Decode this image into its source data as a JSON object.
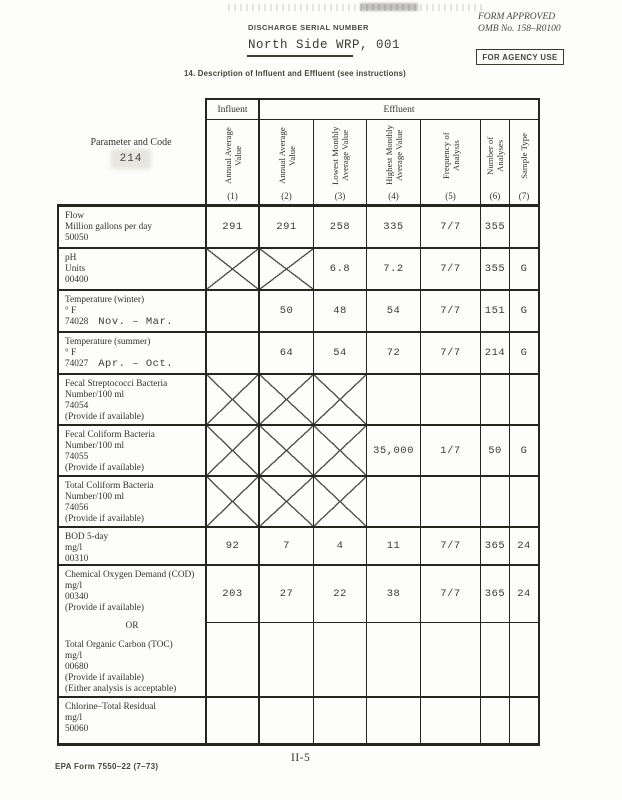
{
  "page": {
    "discharge_label": "DISCHARGE SERIAL NUMBER",
    "discharge_value": "North Side WRP, 001",
    "form_approved_line1": "FORM APPROVED",
    "form_approved_line2": "OMB No. 158–R0100",
    "agency_use_label": "FOR AGENCY USE",
    "section_title": "14. Description of Influent and Effluent (see instructions)",
    "footer_left": "EPA Form 7550–22 (7–73)",
    "footer_center": "II-5"
  },
  "colors": {
    "paper": "#fdfdfb",
    "ink": "#33322c",
    "table_line": "#26251f"
  },
  "table": {
    "param_header": "Parameter and Code",
    "param_stamp": "214",
    "group_influent": "Influent",
    "group_effluent": "Effluent",
    "columns": [
      {
        "label": "Annual Average Value",
        "num": "(1)"
      },
      {
        "label": "Annual Average Value",
        "num": "(2)"
      },
      {
        "label": "Lowest Monthly Average Value",
        "num": "(3)"
      },
      {
        "label": "Highest Monthly Average Value",
        "num": "(4)"
      },
      {
        "label": "Frequency of Analysis",
        "num": "(5)"
      },
      {
        "label": "Number of Analyses",
        "num": "(6)"
      },
      {
        "label": "Sample Type",
        "num": "(7)"
      }
    ],
    "rows": [
      {
        "name": "Flow",
        "unit": "Million gallons per day",
        "code": "50050",
        "values": [
          "291",
          "291",
          "258",
          "335",
          "7/7",
          "355",
          ""
        ]
      },
      {
        "name": "pH",
        "unit": "Units",
        "code": "00400",
        "crossed": [
          0,
          1
        ],
        "values": [
          "",
          "",
          "6.8",
          "7.2",
          "7/7",
          "355",
          "G"
        ]
      },
      {
        "name": "Temperature (winter)",
        "unit": "° F",
        "code": "74028",
        "typed": "Nov. – Mar.",
        "values": [
          "",
          "50",
          "48",
          "54",
          "7/7",
          "151",
          "G"
        ]
      },
      {
        "name": "Temperature (summer)",
        "unit": "° F",
        "code": "74027",
        "typed": "Apr. – Oct.",
        "values": [
          "",
          "64",
          "54",
          "72",
          "7/7",
          "214",
          "G"
        ]
      },
      {
        "name": "Fecal Streptococci Bacteria",
        "unit": "Number/100 ml",
        "code": "74054",
        "note": "(Provide if available)",
        "crossed": [
          0,
          1,
          2
        ],
        "values": [
          "",
          "",
          "",
          "",
          "",
          "",
          ""
        ]
      },
      {
        "name": "Fecal Coliform Bacteria",
        "unit": "Number/100 ml",
        "code": "74055",
        "note": "(Provide if available)",
        "crossed": [
          0,
          1,
          2
        ],
        "values": [
          "",
          "",
          "",
          "35,000",
          "1/7",
          "50",
          "G"
        ]
      },
      {
        "name": "Total Coliform Bacteria",
        "unit": "Number/100 ml",
        "code": "74056",
        "note": "(Provide if available)",
        "crossed": [
          0,
          1,
          2
        ],
        "values": [
          "",
          "",
          "",
          "",
          "",
          "",
          ""
        ]
      },
      {
        "name": "BOD 5-day",
        "unit": "mg/l",
        "code": "00310",
        "values": [
          "92",
          "7",
          "4",
          "11",
          "7/7",
          "365",
          "24"
        ]
      },
      {
        "name": "Chemical Oxygen Demand (COD)",
        "unit": "mg/l",
        "code": "00340",
        "note": "(Provide if available)",
        "values": [
          "203",
          "27",
          "22",
          "38",
          "7/7",
          "365",
          "24"
        ]
      },
      {
        "or_label": "OR",
        "name": "Total Organic Carbon (TOC)",
        "unit": "mg/l",
        "code": "00680",
        "note": "(Provide if available)",
        "note2": "(Either analysis is acceptable)",
        "values": [
          "",
          "",
          "",
          "",
          "",
          "",
          ""
        ]
      },
      {
        "name": "Chlorine–Total Residual",
        "unit": "mg/l",
        "code": "50060",
        "values": [
          "",
          "",
          "",
          "",
          "",
          "",
          ""
        ]
      }
    ]
  }
}
